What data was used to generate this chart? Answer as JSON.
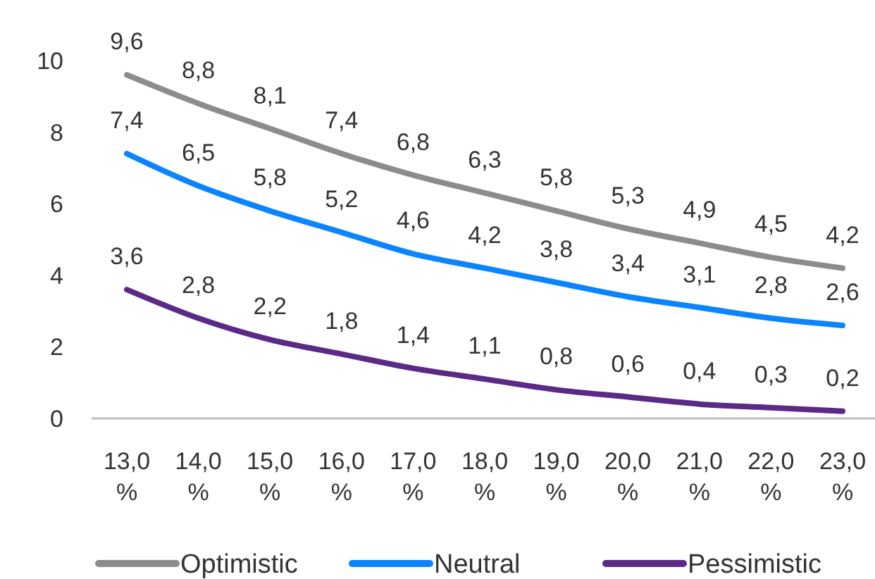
{
  "chart_data": {
    "type": "line",
    "categories": [
      "13,0 %",
      "14,0 %",
      "15,0 %",
      "16,0 %",
      "17,0 %",
      "18,0 %",
      "19,0 %",
      "20,0 %",
      "21,0 %",
      "22,0 %",
      "23,0 %"
    ],
    "ylim": [
      0,
      10
    ],
    "yticks": [
      0,
      2,
      4,
      6,
      8,
      10
    ],
    "grid": false,
    "legend": "bottom",
    "marker": "none",
    "line_style": "solid",
    "series": [
      {
        "name": "Optimistic",
        "color": "#8c8c8c",
        "values": [
          9.6,
          8.8,
          8.1,
          7.4,
          6.8,
          6.3,
          5.8,
          5.3,
          4.9,
          4.5,
          4.2
        ],
        "value_labels": [
          "9,6",
          "8,8",
          "8,1",
          "7,4",
          "6,8",
          "6,3",
          "5,8",
          "5,3",
          "4,9",
          "4,5",
          "4,2"
        ]
      },
      {
        "name": "Neutral",
        "color": "#0a84ff",
        "values": [
          7.4,
          6.5,
          5.8,
          5.2,
          4.6,
          4.2,
          3.8,
          3.4,
          3.1,
          2.8,
          2.6
        ],
        "value_labels": [
          "7,4",
          "6,5",
          "5,8",
          "5,2",
          "4,6",
          "4,2",
          "3,8",
          "3,4",
          "3,1",
          "2,8",
          "2,6"
        ]
      },
      {
        "name": "Pessimistic",
        "color": "#5b2a86",
        "values": [
          3.6,
          2.8,
          2.2,
          1.8,
          1.4,
          1.1,
          0.8,
          0.6,
          0.4,
          0.3,
          0.2
        ],
        "value_labels": [
          "3,6",
          "2,8",
          "2,2",
          "1,8",
          "1,4",
          "1,1",
          "0,8",
          "0,6",
          "0,4",
          "0,3",
          "0,2"
        ]
      }
    ]
  }
}
